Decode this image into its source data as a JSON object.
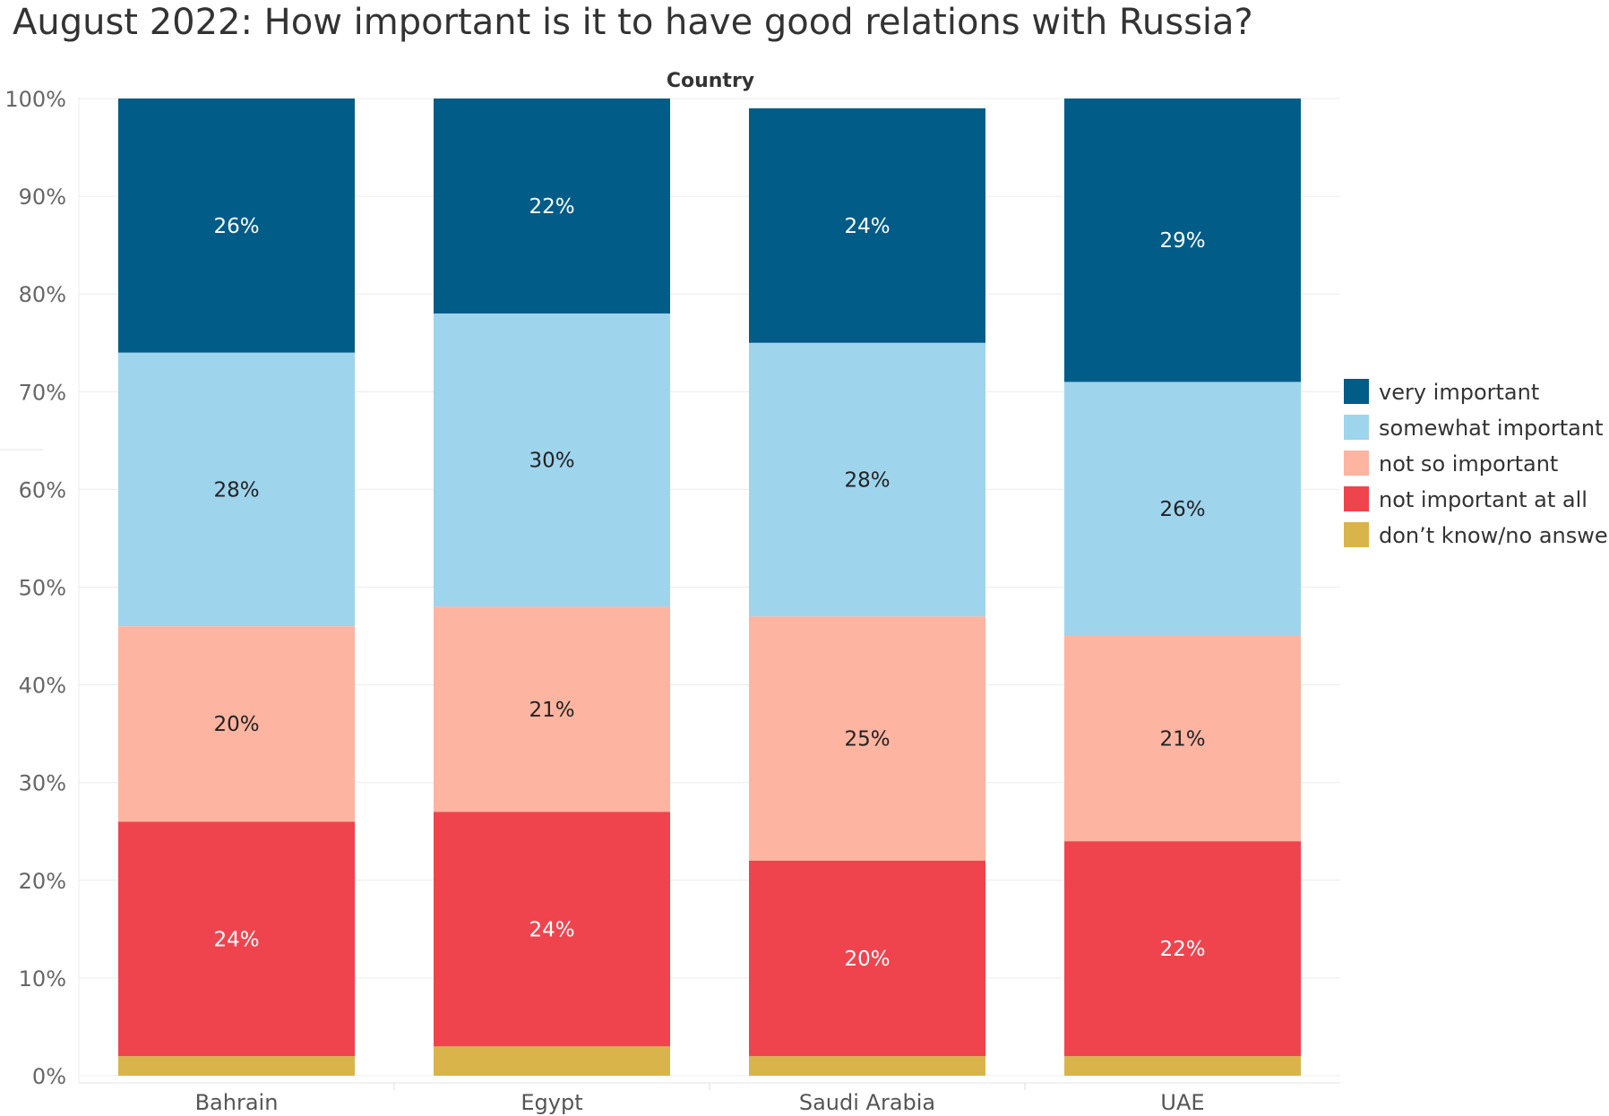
{
  "chart_data": {
    "type": "bar",
    "stacked": true,
    "title": "August 2022: How important is it to have good relations with Russia?",
    "column_header": "Country",
    "categories": [
      "Bahrain",
      "Egypt",
      "Saudi Arabia",
      "UAE"
    ],
    "ylim": [
      0,
      100
    ],
    "y_ticks": [
      "0%",
      "10%",
      "20%",
      "30%",
      "40%",
      "50%",
      "60%",
      "70%",
      "80%",
      "90%",
      "100%"
    ],
    "grid": true,
    "legend_position": "right",
    "series": [
      {
        "name": "don’t know/no answer",
        "color": "#D9B44A",
        "values": [
          2,
          3,
          2,
          2
        ],
        "labels": [
          "",
          "",
          "",
          ""
        ]
      },
      {
        "name": "not important at all",
        "color": "#EF444E",
        "values": [
          24,
          24,
          20,
          22
        ],
        "labels": [
          "24%",
          "24%",
          "20%",
          "22%"
        ]
      },
      {
        "name": "not so important",
        "color": "#FDB4A1",
        "values": [
          20,
          21,
          25,
          21
        ],
        "labels": [
          "20%",
          "21%",
          "25%",
          "21%"
        ]
      },
      {
        "name": "somewhat important",
        "color": "#9FD4ED",
        "values": [
          28,
          30,
          28,
          26
        ],
        "labels": [
          "28%",
          "30%",
          "28%",
          "26%"
        ]
      },
      {
        "name": "very important",
        "color": "#025C88",
        "values": [
          26,
          22,
          24,
          29
        ],
        "labels": [
          "26%",
          "22%",
          "24%",
          "29%"
        ]
      }
    ],
    "legend_order": [
      "very important",
      "somewhat important",
      "not so important",
      "not important at all",
      "don’t know/no answer"
    ]
  }
}
